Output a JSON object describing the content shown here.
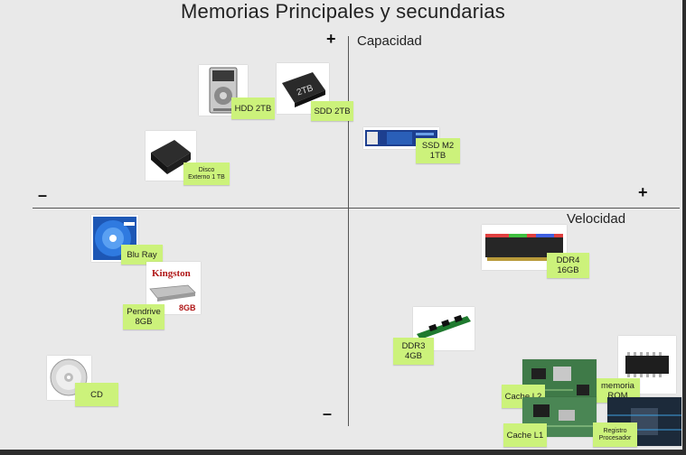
{
  "title": "Memorias Principales y secundarias",
  "axes": {
    "y_label": "Capacidad",
    "x_label": "Velocidad",
    "plus": "+",
    "minus": "–"
  },
  "items": {
    "hdd": "HDD 2TB",
    "sdd": "SDD 2TB",
    "ssd_m2": "SSD M2\n1TB",
    "external_disk": "Disco\nExterno 1 TB",
    "bluray": "Blu Ray",
    "pendrive": "Pendrive\n8GB",
    "cd": "CD",
    "ddr4": "DDR4\n16GB",
    "ddr3": "DDR3\n4GB",
    "rom": "memoria\nROM",
    "cache_l2": "Cache L2",
    "cache_l1": "Cache L1",
    "registers": "Registro\nProcesador"
  },
  "image_text": {
    "kingston": "Kingston",
    "kingston_capacity": "8GB",
    "sdd_capacity": "2TB"
  },
  "colors": {
    "sticky_note": "#ccf27b",
    "background": "#e9e9e9",
    "axis": "#555555"
  }
}
